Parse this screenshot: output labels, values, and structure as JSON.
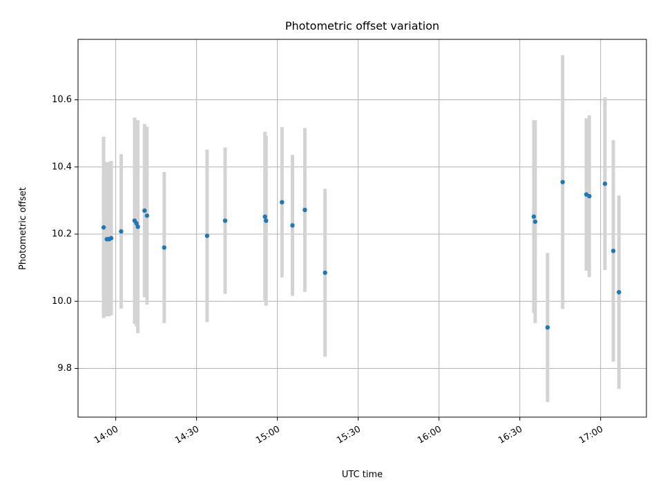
{
  "chart_data": {
    "type": "scatter",
    "title": "Photometric offset variation",
    "xlabel": "UTC time",
    "ylabel": "Photometric offset",
    "x_ticks": [
      "14:00",
      "14:30",
      "15:00",
      "15:30",
      "16:00",
      "16:30",
      "17:00"
    ],
    "y_ticks": [
      "9.8",
      "10.0",
      "10.2",
      "10.4",
      "10.6"
    ],
    "xlim": [
      "13:46",
      "17:17"
    ],
    "ylim": [
      9.655,
      10.78
    ],
    "grid": true,
    "point_color": "#1f77b4",
    "errorbar_color": "#d3d3d3",
    "series": [
      {
        "points": [
          {
            "t": "13:55.5",
            "y": 10.22,
            "err": 0.27
          },
          {
            "t": "13:56.7",
            "y": 10.185,
            "err": 0.23
          },
          {
            "t": "13:57.5",
            "y": 10.185,
            "err": 0.23
          },
          {
            "t": "13:58.3",
            "y": 10.188,
            "err": 0.23
          },
          {
            "t": "14:02.0",
            "y": 10.208,
            "err": 0.23
          },
          {
            "t": "14:07.0",
            "y": 10.24,
            "err": 0.307
          },
          {
            "t": "14:07.7",
            "y": 10.232,
            "err": 0.307
          },
          {
            "t": "14:08.2",
            "y": 10.222,
            "err": 0.317
          },
          {
            "t": "14:10.7",
            "y": 10.27,
            "err": 0.258
          },
          {
            "t": "14:11.6",
            "y": 10.255,
            "err": 0.265
          },
          {
            "t": "14:18.0",
            "y": 10.16,
            "err": 0.225
          },
          {
            "t": "14:33.9",
            "y": 10.195,
            "err": 0.257
          },
          {
            "t": "14:40.6",
            "y": 10.24,
            "err": 0.218
          },
          {
            "t": "14:55.4",
            "y": 10.252,
            "err": 0.253
          },
          {
            "t": "14:55.8",
            "y": 10.24,
            "err": 0.253
          },
          {
            "t": "15:01.7",
            "y": 10.295,
            "err": 0.224
          },
          {
            "t": "15:05.6",
            "y": 10.226,
            "err": 0.21
          },
          {
            "t": "15:10.2",
            "y": 10.272,
            "err": 0.244
          },
          {
            "t": "15:17.7",
            "y": 10.085,
            "err": 0.25
          },
          {
            "t": "16:35.2",
            "y": 10.252,
            "err": 0.287
          },
          {
            "t": "16:35.7",
            "y": 10.237,
            "err": 0.302
          },
          {
            "t": "16:40.3",
            "y": 9.922,
            "err": 0.222
          },
          {
            "t": "16:45.9",
            "y": 10.355,
            "err": 0.378
          },
          {
            "t": "16:54.7",
            "y": 10.318,
            "err": 0.227
          },
          {
            "t": "16:55.8",
            "y": 10.313,
            "err": 0.241
          },
          {
            "t": "17:01.6",
            "y": 10.35,
            "err": 0.257
          },
          {
            "t": "17:04.7",
            "y": 10.15,
            "err": 0.33
          },
          {
            "t": "17:06.8",
            "y": 10.027,
            "err": 0.288
          }
        ]
      }
    ]
  }
}
